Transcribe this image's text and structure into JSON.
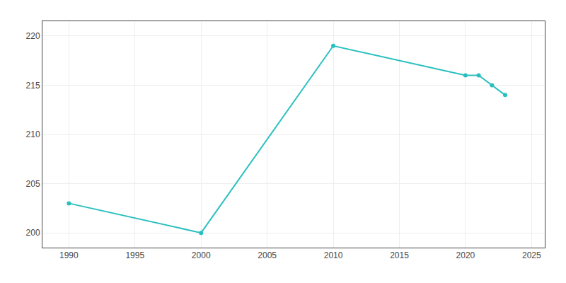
{
  "chart_data": {
    "type": "line",
    "x": [
      1990,
      2000,
      2010,
      2020,
      2021,
      2022,
      2023
    ],
    "values": [
      203,
      200,
      219,
      216,
      216,
      215,
      214
    ],
    "color": "#2abfbf",
    "marker": "circle",
    "xlim": [
      1988,
      2026
    ],
    "ylim": [
      198.5,
      221.5
    ],
    "xticks": [
      1990,
      1995,
      2000,
      2005,
      2010,
      2015,
      2020,
      2025
    ],
    "yticks": [
      200,
      205,
      210,
      215,
      220
    ],
    "grid": true
  }
}
